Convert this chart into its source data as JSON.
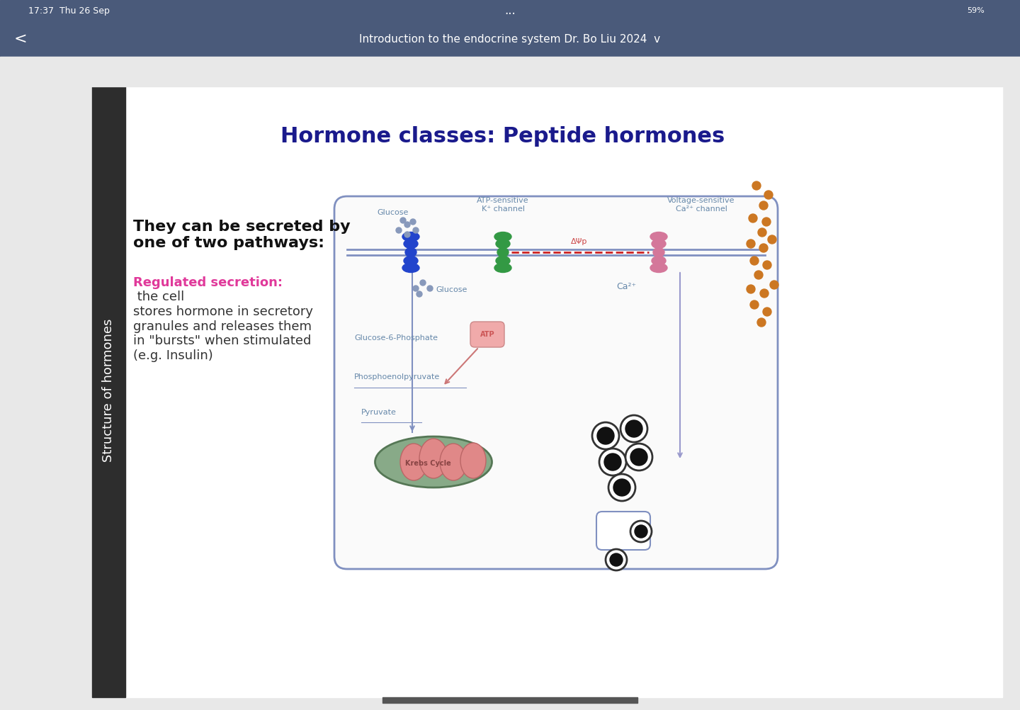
{
  "bg_color": "#e8e8e8",
  "slide_bg": "#ffffff",
  "title": "Hormone classes: Peptide hormones",
  "title_color": "#1a1a8c",
  "title_fontsize": 22,
  "sidebar_color": "#2d2d2d",
  "sidebar_text": "Structure of hormones",
  "sidebar_text_color": "#ffffff",
  "sidebar_fontsize": 13,
  "main_text_bold": "They can be secreted by\none of two pathways:",
  "main_text_bold_fontsize": 16,
  "regulated_label": "Regulated secretion:",
  "regulated_label_color": "#e0399a",
  "regulated_text": " the cell\nstores hormone in secretory\ngranules and releases them\nin \"bursts\" when stimulated\n(e.g. Insulin)",
  "regulated_text_color": "#333333",
  "regulated_fontsize": 13,
  "cell_border_color": "#8090c0",
  "glucose_transporter_color": "#2244cc",
  "k_channel_color": "#339944",
  "ca_channel_color": "#d4779a",
  "pathway_line_color": "#8090c0",
  "dashed_line_color": "#cc2222",
  "orange_dot_color": "#cc7722",
  "mitochondria_outer": "#88aa88",
  "mitochondria_inner": "#e08888",
  "header_bar_color": "#4a5a7a",
  "toolbar_color": "#e8e8e8",
  "status_bar_color": "#4a5a7a"
}
